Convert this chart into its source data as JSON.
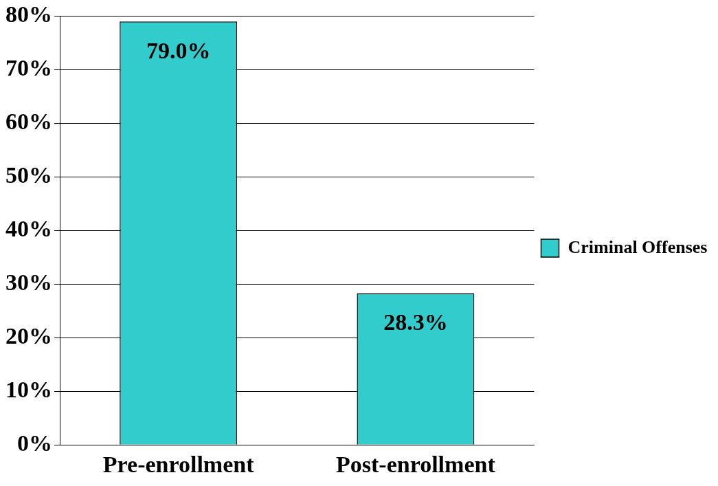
{
  "chart_data": {
    "type": "bar",
    "categories": [
      "Pre-enrollment",
      "Post-enrollment"
    ],
    "series": [
      {
        "name": "Criminal Offenses",
        "color": "#33cccc",
        "values": [
          79.0,
          28.3
        ],
        "value_labels": [
          "79.0%",
          "28.3%"
        ]
      }
    ],
    "ylim": [
      0,
      80
    ],
    "yticks": [
      {
        "value": 0,
        "label": "0%"
      },
      {
        "value": 10,
        "label": "10%"
      },
      {
        "value": 20,
        "label": "20%"
      },
      {
        "value": 30,
        "label": "30%"
      },
      {
        "value": 40,
        "label": "40%"
      },
      {
        "value": 50,
        "label": "50%"
      },
      {
        "value": 60,
        "label": "60%"
      },
      {
        "value": 70,
        "label": "70%"
      },
      {
        "value": 80,
        "label": "80%"
      }
    ],
    "grid": "y",
    "legend": "right"
  }
}
